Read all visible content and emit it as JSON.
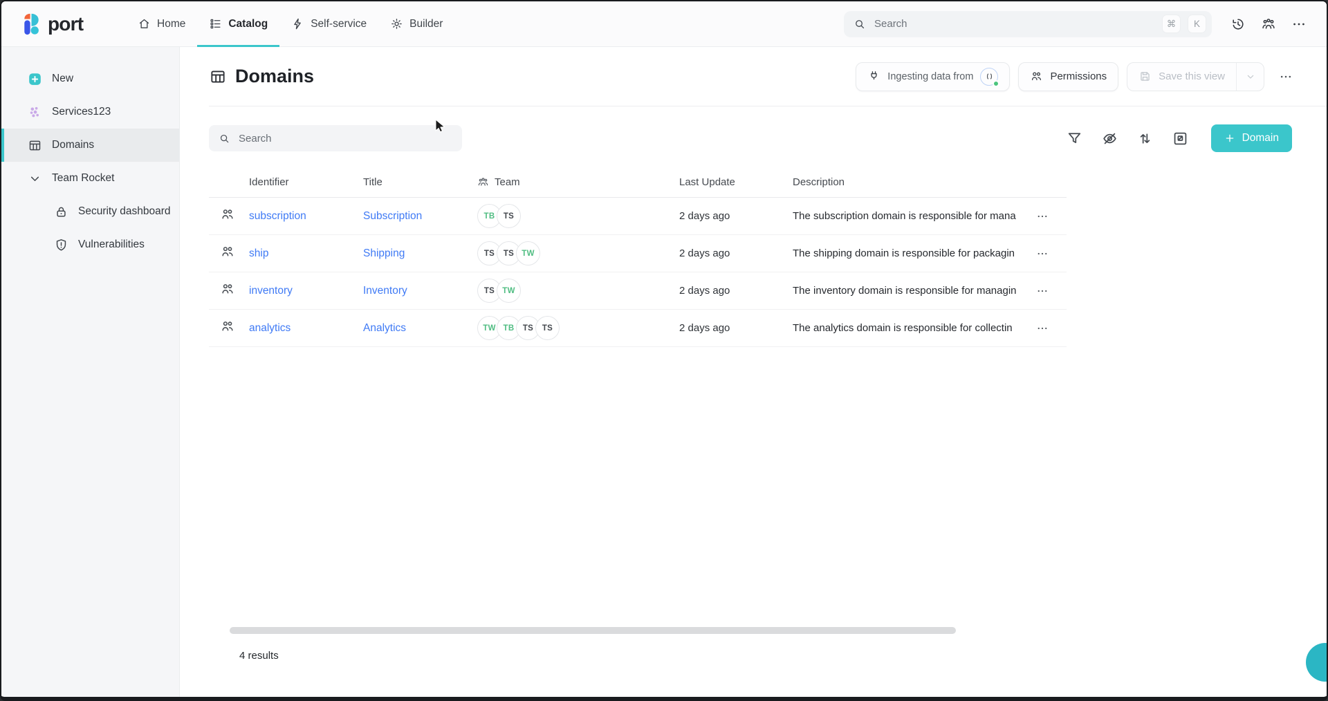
{
  "colors": {
    "accent_teal": "#3bc6cb",
    "link_blue": "#3f7af5",
    "badge_green": "#50bd82"
  },
  "topbar": {
    "brand": "port",
    "nav_items": [
      {
        "label": "Home",
        "icon": "home-icon",
        "active": false
      },
      {
        "label": "Catalog",
        "icon": "catalog-icon",
        "active": true
      },
      {
        "label": "Self-service",
        "icon": "lightning-icon",
        "active": false
      },
      {
        "label": "Builder",
        "icon": "gear-icon",
        "active": false
      }
    ],
    "search": {
      "placeholder": "Search",
      "keys": [
        "⌘",
        "K"
      ]
    }
  },
  "sidebar": {
    "items": [
      {
        "label": "New",
        "icon": "plus-square-icon",
        "selected": false,
        "indent": false
      },
      {
        "label": "Services123",
        "icon": "services-cluster-icon",
        "selected": false,
        "indent": false
      },
      {
        "label": "Domains",
        "icon": "table-icon",
        "selected": true,
        "indent": false
      },
      {
        "label": "Team Rocket",
        "icon": "chevron-down-icon",
        "selected": false,
        "indent": false
      },
      {
        "label": "Security dashboard",
        "icon": "lock-icon",
        "selected": false,
        "indent": true
      },
      {
        "label": "Vulnerabilities",
        "icon": "shield-icon",
        "selected": false,
        "indent": true
      }
    ]
  },
  "page": {
    "title": "Domains",
    "actions": {
      "ingesting_label": "Ingesting data from",
      "permissions_label": "Permissions",
      "save_view_label": "Save this view"
    },
    "toolbar": {
      "search_placeholder": "Search",
      "add_label": "Domain"
    },
    "table": {
      "columns": [
        "Identifier",
        "Title",
        "Team",
        "Last Update",
        "Description"
      ],
      "rows": [
        {
          "identifier": "subscription",
          "title": "Subscription",
          "teams": [
            {
              "label": "TB",
              "color": "green"
            },
            {
              "label": "TS",
              "color": "dark"
            }
          ],
          "last_update": "2 days ago",
          "description": "The subscription domain is responsible for mana"
        },
        {
          "identifier": "ship",
          "title": "Shipping",
          "teams": [
            {
              "label": "TS",
              "color": "dark"
            },
            {
              "label": "TS",
              "color": "dark"
            },
            {
              "label": "TW",
              "color": "green"
            }
          ],
          "last_update": "2 days ago",
          "description": "The shipping domain is responsible for packagin"
        },
        {
          "identifier": "inventory",
          "title": "Inventory",
          "teams": [
            {
              "label": "TS",
              "color": "dark"
            },
            {
              "label": "TW",
              "color": "green"
            }
          ],
          "last_update": "2 days ago",
          "description": "The inventory domain is responsible for managin"
        },
        {
          "identifier": "analytics",
          "title": "Analytics",
          "teams": [
            {
              "label": "TW",
              "color": "green"
            },
            {
              "label": "TB",
              "color": "green"
            },
            {
              "label": "TS",
              "color": "dark"
            },
            {
              "label": "TS",
              "color": "dark"
            }
          ],
          "last_update": "2 days ago",
          "description": "The analytics domain is responsible for collectin"
        }
      ]
    },
    "results_count": "4 results"
  }
}
